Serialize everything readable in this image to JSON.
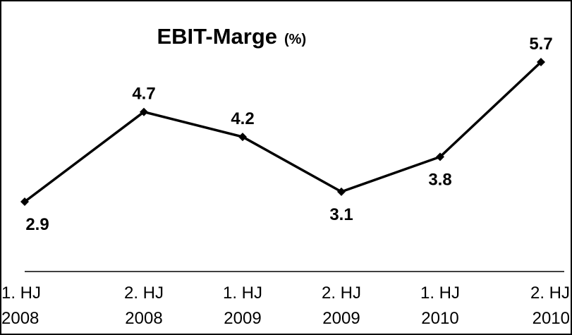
{
  "chart_data": {
    "type": "line",
    "title": "EBIT-Marge",
    "subtitle": "(%)",
    "categories": [
      [
        "1. HJ",
        "2008"
      ],
      [
        "2. HJ",
        "2008"
      ],
      [
        "1. HJ",
        "2009"
      ],
      [
        "2. HJ",
        "2009"
      ],
      [
        "1. HJ",
        "2010"
      ],
      [
        "2. HJ",
        "2010"
      ]
    ],
    "values": [
      2.9,
      4.7,
      4.2,
      3.1,
      3.8,
      5.7
    ],
    "color": "#000000"
  }
}
